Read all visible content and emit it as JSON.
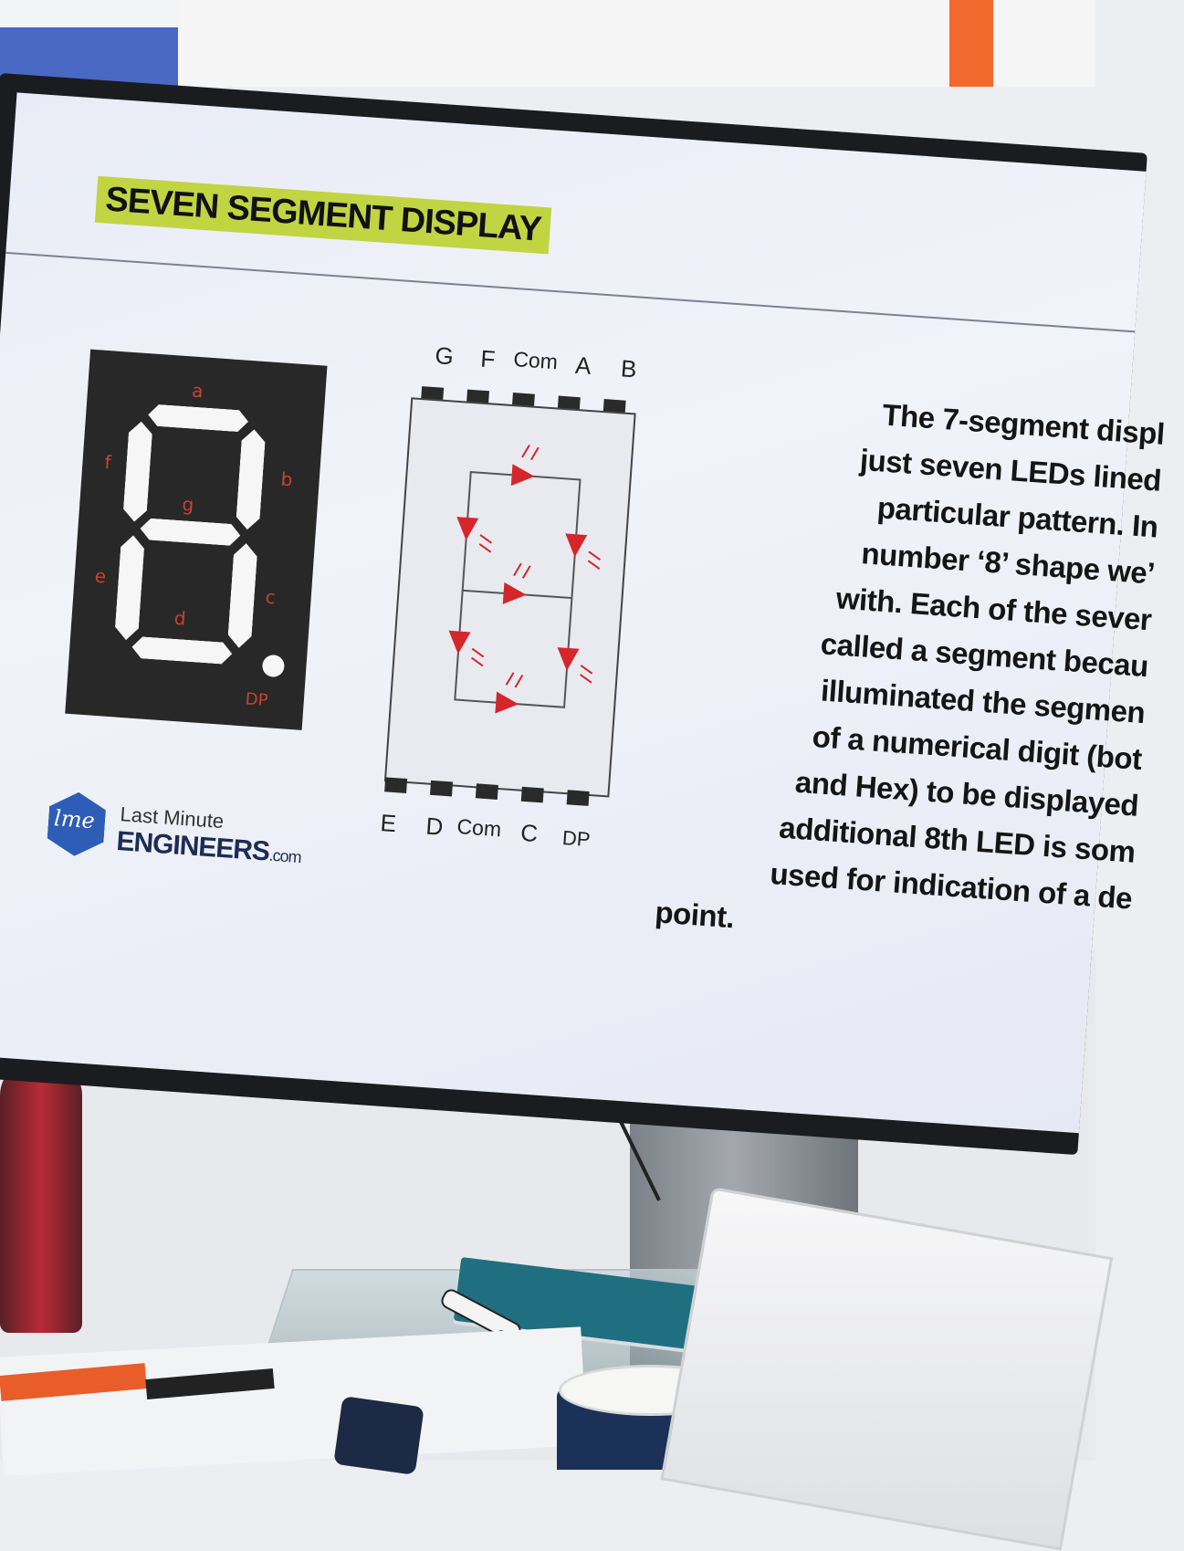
{
  "slide": {
    "title": "SEVEN SEGMENT DISPLAY",
    "segment_labels": {
      "a": "a",
      "b": "b",
      "c": "c",
      "d": "d",
      "e": "e",
      "f": "f",
      "g": "g",
      "dp": "DP"
    },
    "pins_top": [
      "G",
      "F",
      "Com",
      "A",
      "B"
    ],
    "pins_bottom": [
      "E",
      "D",
      "Com",
      "C",
      "DP"
    ],
    "logo": {
      "mark": "lme",
      "line1": "Last Minute",
      "line2": "ENGINEERS",
      ".com": ".com"
    },
    "body_lines": [
      "The 7-segment displ",
      "just seven LEDs lined",
      "particular pattern. In",
      "number ‘8’ shape we’",
      "with. Each of the sever",
      "called a segment becau",
      "illuminated the segmen",
      "of a numerical digit (bot",
      "and Hex) to be displayed",
      "additional 8th LED is som",
      "used for indication of a de",
      "point."
    ]
  },
  "colors": {
    "highlight": "#c1d442",
    "led": "#d4262b",
    "logo": "#2d5db6",
    "display_bg": "#282828"
  }
}
